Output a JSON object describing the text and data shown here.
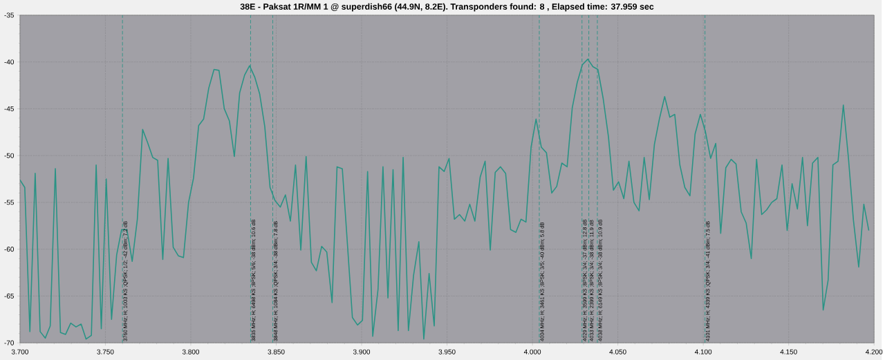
{
  "chart_data": {
    "type": "line",
    "title": "38E - Paksat 1R/MM 1 @ superdish66 (44.9N, 8.2E). Transponders found: 8 , Elapsed time: 37.959 sec",
    "x": [
      3.7,
      3.7028,
      3.7058,
      3.7089,
      3.7118,
      3.7148,
      3.7177,
      3.7207,
      3.7237,
      3.7267,
      3.7297,
      3.7328,
      3.7358,
      3.7387,
      3.7418,
      3.7446,
      3.7476,
      3.7505,
      3.7536,
      3.7566,
      3.7595,
      3.7626,
      3.7657,
      3.7687,
      3.7718,
      3.7747,
      3.7777,
      3.7806,
      3.7836,
      3.7867,
      3.7897,
      3.7927,
      3.7957,
      3.7987,
      3.8016,
      3.8046,
      3.8075,
      3.8105,
      3.8136,
      3.8165,
      3.8196,
      3.8226,
      3.8255,
      3.8286,
      3.8315,
      3.8344,
      3.8374,
      3.8403,
      3.8433,
      3.8464,
      3.8493,
      3.8524,
      3.8554,
      3.8583,
      3.8613,
      3.8644,
      3.8675,
      3.8706,
      3.8735,
      3.8766,
      3.8796,
      3.8827,
      3.8856,
      3.8887,
      3.8946,
      3.8976,
      3.9005,
      3.9035,
      3.9065,
      3.9096,
      3.9125,
      3.9154,
      3.9184,
      3.9214,
      3.9243,
      3.9274,
      3.9304,
      3.9335,
      3.9364,
      3.9395,
      3.9425,
      3.9453,
      3.9483,
      3.9512,
      3.9543,
      3.9573,
      3.9604,
      3.9633,
      3.9663,
      3.9694,
      3.9723,
      3.9753,
      3.9782,
      3.9813,
      3.9843,
      3.9872,
      3.9903,
      3.9933,
      3.9962,
      3.9992,
      4.0021,
      4.0052,
      4.0082,
      4.0113,
      4.0142,
      4.0172,
      4.0203,
      4.0233,
      4.0262,
      4.0292,
      4.0324,
      4.0354,
      4.0383,
      4.0414,
      4.0445,
      4.0474,
      4.0504,
      4.0535,
      4.0565,
      4.0594,
      4.0624,
      4.0654,
      4.0684,
      4.0714,
      4.0743,
      4.0774,
      4.0804,
      4.0833,
      4.0863,
      4.0892,
      4.0922,
      4.0952,
      4.0983,
      4.1012,
      4.1043,
      4.1073,
      4.1102,
      4.1132,
      4.1163,
      4.1192,
      4.1222,
      4.1251,
      4.1281,
      4.1312,
      4.1342,
      4.1371,
      4.1401,
      4.1431,
      4.1461,
      4.1491,
      4.152,
      4.1551,
      4.1581,
      4.161,
      4.164,
      4.1671,
      4.1702,
      4.1731,
      4.1759,
      4.1789,
      4.182,
      4.185,
      4.1879,
      4.191,
      4.194,
      4.1969
    ],
    "series": [
      {
        "color": "#2a9385",
        "values": [
          -52.6,
          -53.4,
          -68.8,
          -51.9,
          -68.8,
          -69.5,
          -68.2,
          -51.4,
          -68.9,
          -69.1,
          -67.9,
          -68.3,
          -68.0,
          -69.6,
          -69.2,
          -51.0,
          -68.5,
          -52.5,
          -67.5,
          -60.6,
          -57.9,
          -57.9,
          -61.3,
          -56.8,
          -47.2,
          -48.6,
          -50.2,
          -50.5,
          -61.1,
          -50.3,
          -59.8,
          -60.7,
          -60.9,
          -55.0,
          -52.4,
          -46.8,
          -46.1,
          -42.8,
          -40.8,
          -40.9,
          -45.0,
          -46.3,
          -50.1,
          -43.3,
          -41.4,
          -40.4,
          -41.6,
          -43.4,
          -46.9,
          -53.4,
          -54.8,
          -55.5,
          -54.2,
          -57.0,
          -51.0,
          -60.1,
          -50.1,
          -61.4,
          -62.3,
          -59.7,
          -60.3,
          -65.7,
          -51.2,
          -51.4,
          -67.3,
          -68.1,
          -67.6,
          -51.7,
          -69.3,
          -64.3,
          -51.2,
          -65.2,
          -51.5,
          -68.7,
          -50.2,
          -68.7,
          -62.8,
          -59.2,
          -69.6,
          -62.6,
          -68.2,
          -51.2,
          -51.7,
          -50.3,
          -56.8,
          -56.3,
          -57.0,
          -55.2,
          -57.0,
          -52.3,
          -50.6,
          -60.1,
          -51.8,
          -51.2,
          -51.9,
          -57.9,
          -58.2,
          -56.8,
          -57.1,
          -49.1,
          -46.1,
          -49.1,
          -49.7,
          -54.0,
          -53.3,
          -50.8,
          -51.2,
          -44.9,
          -42.2,
          -40.3,
          -39.7,
          -40.5,
          -40.8,
          -43.9,
          -48.0,
          -53.7,
          -52.8,
          -54.6,
          -50.6,
          -55.0,
          -55.9,
          -50.2,
          -54.7,
          -48.8,
          -46.1,
          -43.7,
          -45.9,
          -45.6,
          -51.0,
          -53.4,
          -54.3,
          -47.7,
          -45.6,
          -47.4,
          -50.3,
          -48.7,
          -58.3,
          -51.3,
          -50.4,
          -50.9,
          -56.0,
          -57.2,
          -61.0,
          -50.4,
          -56.3,
          -55.8,
          -55.0,
          -54.6,
          -51.0,
          -58.0,
          -53.0,
          -55.7,
          -50.2,
          -57.5,
          -50.8,
          -50.2,
          -66.5,
          -63.3,
          -51.0,
          -50.6,
          -44.6,
          -50.3,
          -56.9,
          -61.9,
          -55.2,
          -58.0
        ]
      }
    ],
    "xlim": [
      3.7,
      4.2
    ],
    "xticks": [
      {
        "value": 3.7,
        "label": "3.700"
      },
      {
        "value": 3.75,
        "label": "3.750"
      },
      {
        "value": 3.8,
        "label": "3.800"
      },
      {
        "value": 3.85,
        "label": "3.850"
      },
      {
        "value": 3.9,
        "label": "3.900"
      },
      {
        "value": 3.95,
        "label": "3.950"
      },
      {
        "value": 4.0,
        "label": "4.000"
      },
      {
        "value": 4.05,
        "label": "4.050"
      },
      {
        "value": 4.1,
        "label": "4.100"
      },
      {
        "value": 4.15,
        "label": "4.150"
      },
      {
        "value": 4.2,
        "label": "4.200"
      }
    ],
    "ylim": [
      -70,
      -35
    ],
    "yticks": [
      -70,
      -65,
      -60,
      -55,
      -50,
      -45,
      -40,
      -35
    ],
    "grid": true,
    "line_style": "solid",
    "marker": "none",
    "ref_lines": [
      {
        "axis": "x",
        "value": 3.76,
        "label": "3760 MHz; H; 1003 KS ;QPSK; 1/2; -42 dBm; 7.2 dB",
        "color": "#2a9385",
        "line_style": "dashed"
      },
      {
        "axis": "x",
        "value": 3.835,
        "label": "3835 MHz; H; 6498 KS ;8PSK; 5/6; -38 dBm; 10.6 dB",
        "color": "#2a9385",
        "line_style": "dashed"
      },
      {
        "axis": "x",
        "value": 3.848,
        "label": "3848 MHz; H; 1084 KS ;QPSK; 3/4; -38 dBm; 7.8 dB",
        "color": "#2a9385",
        "line_style": "dashed"
      },
      {
        "axis": "x",
        "value": 4.004,
        "label": "4004 MHz; H; 3461 KS ;8PSK; 3/5; -40 dBm; 5.8 dB",
        "color": "#2a9385",
        "line_style": "dashed"
      },
      {
        "axis": "x",
        "value": 4.029,
        "label": "4029 MHz; H; 3599 KS ;8PSK; 3/4; -37 dBm; 12.8 dB",
        "color": "#2a9385",
        "line_style": "dashed"
      },
      {
        "axis": "x",
        "value": 4.033,
        "label": "4033 MHz; H; 2399 KS ;8PSK; 3/4; -38 dBm; 11.9 dB",
        "color": "#2a9385",
        "line_style": "dashed"
      },
      {
        "axis": "x",
        "value": 4.038,
        "label": "4038 MHz; H; 6149 KS ;8PSK; 3/4; -38 dBm; 10.9 dB",
        "color": "#2a9385",
        "line_style": "dashed"
      },
      {
        "axis": "x",
        "value": 4.101,
        "label": "4101 MHz; H; 4339 KS ;QPSK; 3/4; -41 dBm; 7.5 dB",
        "color": "#2a9385",
        "line_style": "dashed"
      }
    ]
  }
}
